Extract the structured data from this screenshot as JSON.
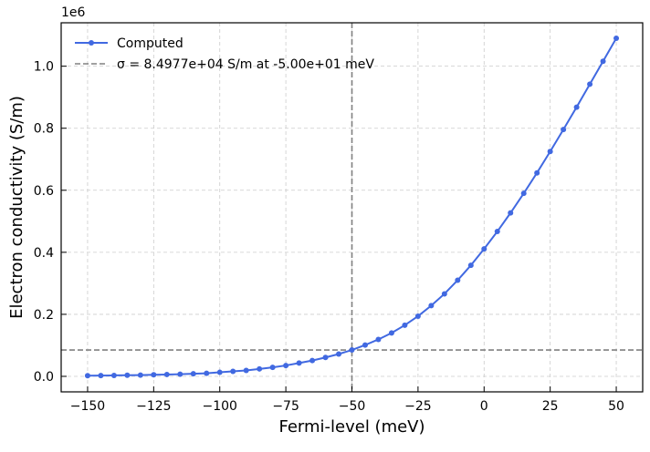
{
  "chart_data": {
    "type": "line",
    "xlabel": "Fermi-level (meV)",
    "ylabel": "Electron conductivity (S/m)",
    "y_offset_text": "1e6",
    "xlim": [
      -160,
      60
    ],
    "ylim": [
      -0.05,
      1.14
    ],
    "x_ticks": [
      -150,
      -125,
      -100,
      -75,
      -50,
      -25,
      0,
      25,
      50
    ],
    "x_tick_labels": [
      "−150",
      "−125",
      "−100",
      "−75",
      "−50",
      "−25",
      "0",
      "25",
      "50"
    ],
    "y_ticks": [
      0.0,
      0.2,
      0.4,
      0.6,
      0.8,
      1.0
    ],
    "y_tick_labels": [
      "0.0",
      "0.2",
      "0.4",
      "0.6",
      "0.8",
      "1.0"
    ],
    "grid": true,
    "legend_position": "top-left",
    "series": [
      {
        "name": "Computed",
        "color": "#4169e1",
        "marker": "circle",
        "x": [
          -150,
          -145,
          -140,
          -135,
          -130,
          -125,
          -120,
          -115,
          -110,
          -105,
          -100,
          -95,
          -90,
          -85,
          -80,
          -75,
          -70,
          -65,
          -60,
          -55,
          -50,
          -45,
          -40,
          -35,
          -30,
          -25,
          -20,
          -15,
          -10,
          -5,
          0,
          5,
          10,
          15,
          20,
          25,
          30,
          35,
          40,
          45,
          50
        ],
        "y": [
          0.002,
          0.0025,
          0.003,
          0.0035,
          0.004,
          0.005,
          0.006,
          0.007,
          0.0085,
          0.01,
          0.013,
          0.016,
          0.019,
          0.024,
          0.029,
          0.035,
          0.043,
          0.051,
          0.061,
          0.072,
          0.085,
          0.101,
          0.119,
          0.14,
          0.165,
          0.194,
          0.228,
          0.266,
          0.31,
          0.358,
          0.411,
          0.467,
          0.527,
          0.59,
          0.656,
          0.725,
          0.796,
          0.868,
          0.942,
          1.016,
          1.09
        ]
      }
    ],
    "reference_lines": [
      {
        "orientation": "horizontal",
        "value": 0.084977,
        "color": "#808080",
        "style": "dashed",
        "label": "σ = 8.4977e+04 S/m at -5.00e+01 meV"
      },
      {
        "orientation": "vertical",
        "value": -50,
        "color": "#808080",
        "style": "dashed"
      }
    ]
  }
}
